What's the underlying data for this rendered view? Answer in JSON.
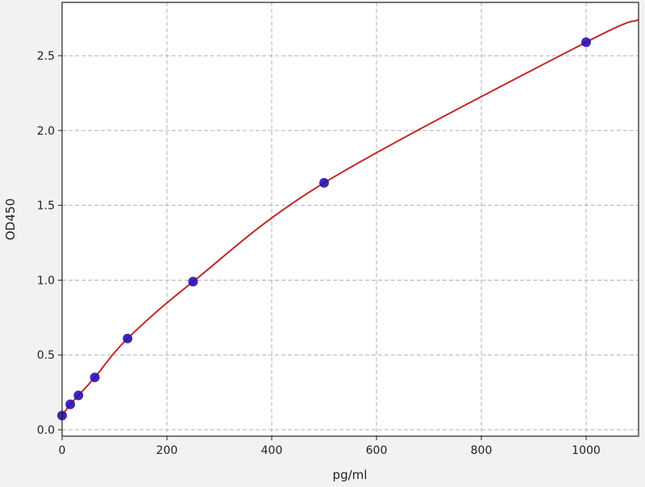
{
  "chart_data": {
    "type": "scatter",
    "title": "",
    "xlabel": "pg/ml",
    "ylabel": "OD450",
    "xlim": [
      0,
      1100
    ],
    "ylim": [
      -0.043,
      2.856
    ],
    "xticks": [
      0,
      200,
      400,
      600,
      800,
      1000
    ],
    "xtick_labels": [
      "0",
      "200",
      "400",
      "600",
      "800",
      "1000"
    ],
    "yticks": [
      0.0,
      0.5,
      1.0,
      1.5,
      2.0,
      2.5
    ],
    "ytick_labels": [
      "0.0",
      "0.5",
      "1.0",
      "1.5",
      "2.0",
      "2.5"
    ],
    "grid": true,
    "series": [
      {
        "type": "scatter",
        "x": [
          0,
          15.6,
          31.25,
          62.5,
          125,
          250,
          500,
          1000
        ],
        "y": [
          0.095,
          0.17,
          0.23,
          0.35,
          0.61,
          0.99,
          1.65,
          2.59
        ],
        "color": "#2a0fb0"
      },
      {
        "type": "line",
        "x": [
          0,
          15.6,
          31.25,
          62.5,
          125,
          250,
          500,
          1000,
          1100
        ],
        "y": [
          0.095,
          0.17,
          0.23,
          0.35,
          0.61,
          0.99,
          1.65,
          2.59,
          2.74
        ],
        "color": "#c0282a"
      }
    ]
  }
}
